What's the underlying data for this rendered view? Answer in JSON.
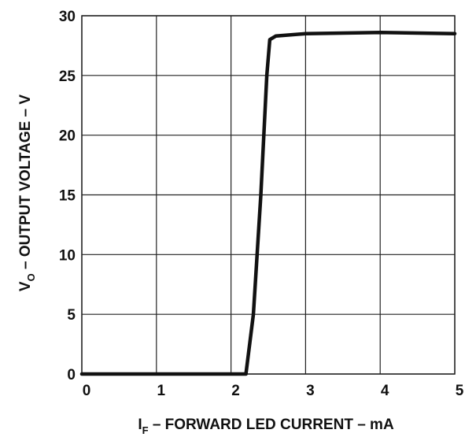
{
  "chart_data": {
    "type": "line",
    "title": "",
    "xlabel": "I_F – FORWARD LED CURRENT – mA",
    "xlabel_main": "I",
    "xlabel_sub": "F",
    "xlabel_rest": " – FORWARD LED CURRENT – mA",
    "ylabel": "V_O – OUTPUT VOLTAGE – V",
    "ylabel_main": "V",
    "ylabel_sub": "O",
    "ylabel_rest": " – OUTPUT VOLTAGE – V",
    "xlim": [
      0,
      5
    ],
    "ylim": [
      0,
      30
    ],
    "x_ticks": [
      0,
      1,
      2,
      3,
      4,
      5
    ],
    "y_ticks": [
      0,
      5,
      10,
      15,
      20,
      25,
      30
    ],
    "grid": true,
    "legend": "none",
    "series": [
      {
        "x": [
          0,
          2.2,
          2.3,
          2.4,
          2.48,
          2.52,
          2.6,
          3.0,
          4.0,
          5.0
        ],
        "y": [
          0,
          0,
          5,
          15,
          25,
          28,
          28.3,
          28.5,
          28.6,
          28.5
        ]
      }
    ],
    "colors": {
      "line": "#111111",
      "grid": "#222222",
      "text": "#111111",
      "background": "#ffffff"
    }
  }
}
